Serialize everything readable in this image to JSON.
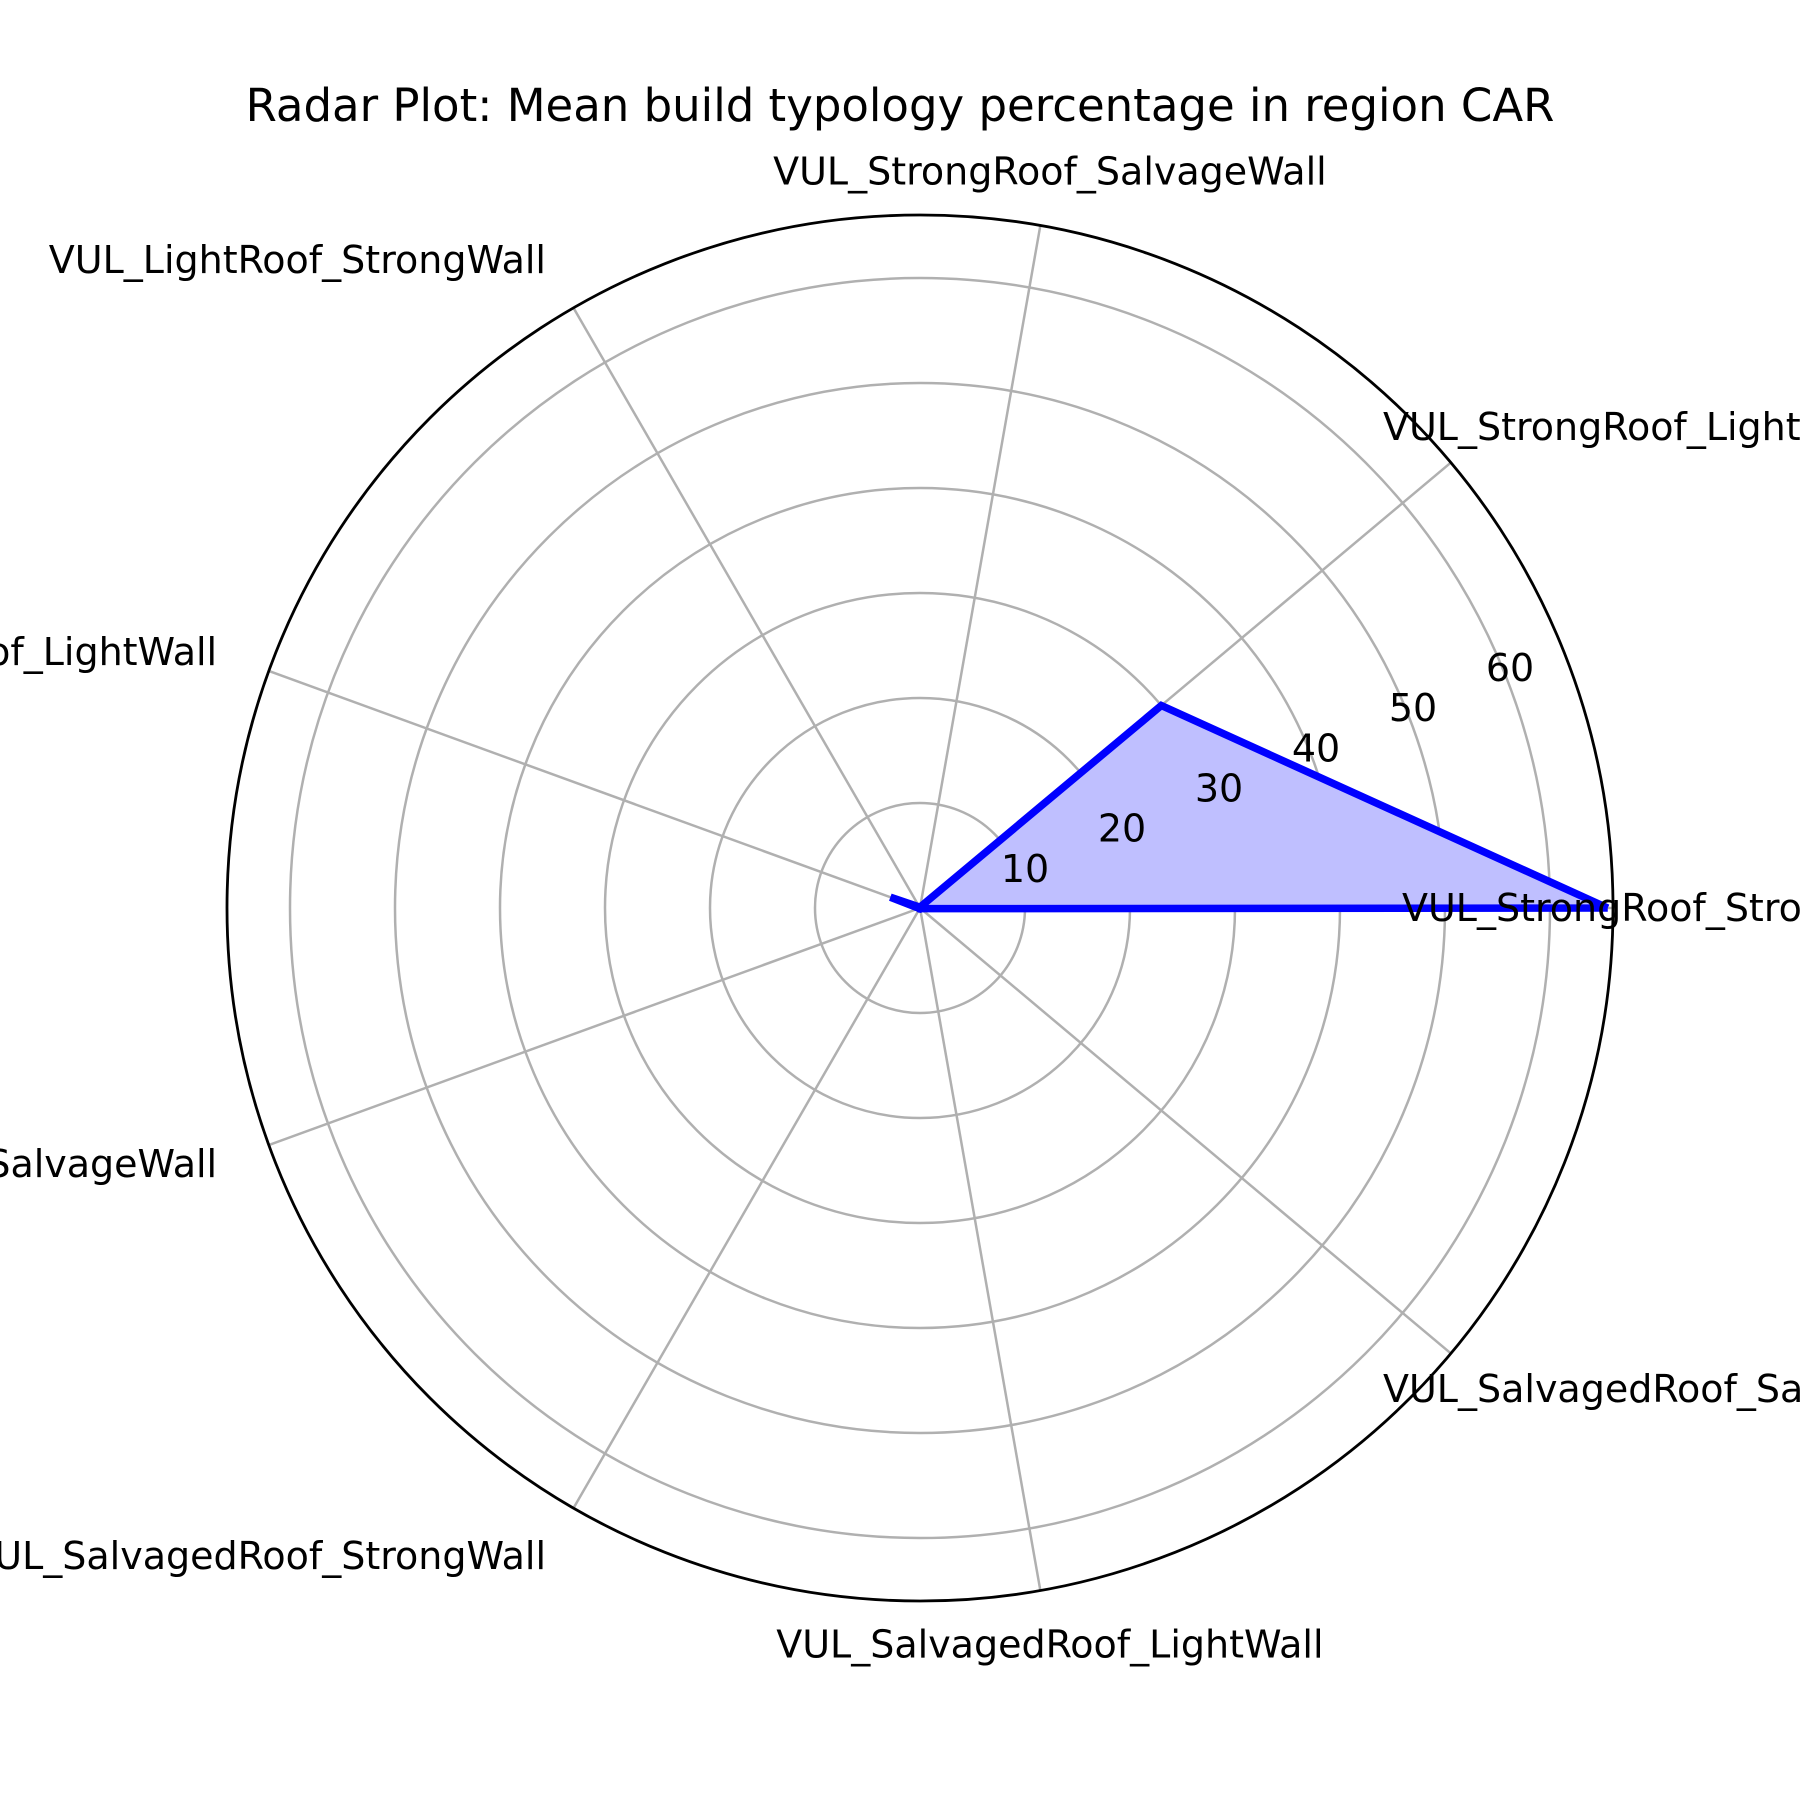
{
  "chart_data": {
    "type": "radar",
    "title": "Radar Plot: Mean build typology percentage in region CAR",
    "categories": [
      "VUL_StrongRoof_StrongWall",
      "VUL_StrongRoof_LightWall",
      "VUL_StrongRoof_SalvageWall",
      "VUL_LightRoof_StrongWall",
      "VUL_LightRoof_LightWall",
      "VUL_LightRoof_SalvageWall",
      "VUL_SalvagedRoof_StrongWall",
      "VUL_SalvagedRoof_LightWall",
      "VUL_SalvagedRoof_SalvageWall"
    ],
    "series": [
      {
        "values": [
          65.5,
          30.0,
          0.1,
          0.1,
          3.0,
          0.1,
          0.1,
          0.1,
          0.1
        ]
      }
    ],
    "rticks": [
      10,
      20,
      30,
      40,
      50,
      60
    ],
    "rlim": [
      0,
      66
    ],
    "grid": true,
    "colors": {
      "line": "#0000ff",
      "fill": "#bfbfff",
      "grid": "#b0b0b0",
      "frame": "#000000"
    }
  }
}
